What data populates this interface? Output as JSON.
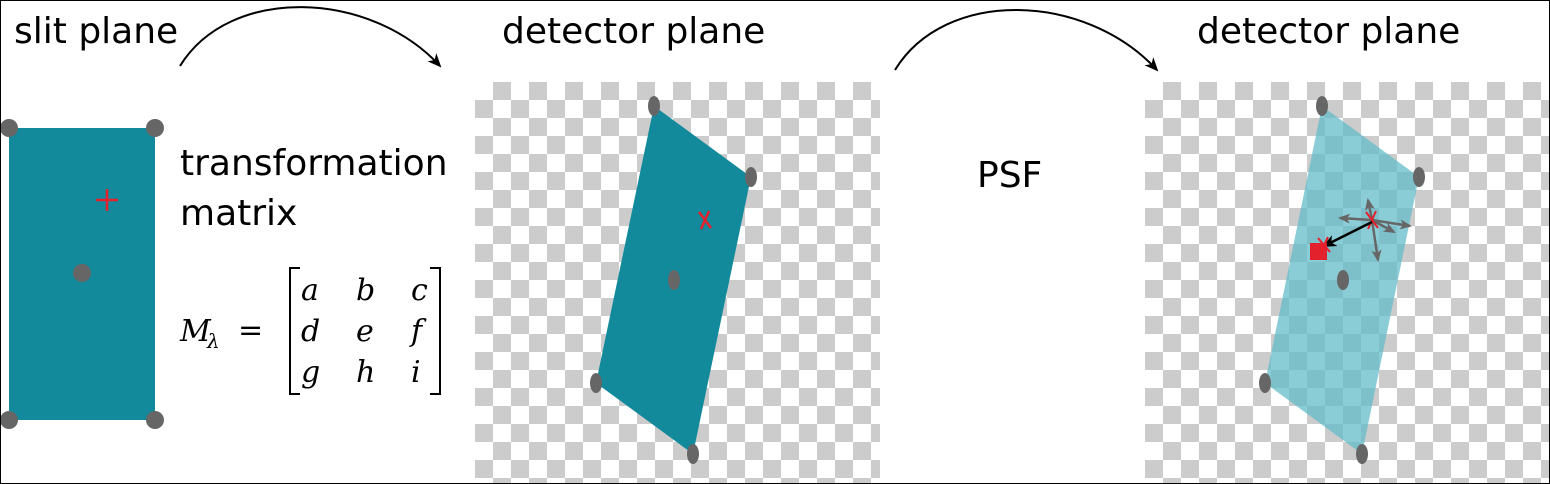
{
  "labels": {
    "slit_plane": "slit plane",
    "detector_plane_1": "detector plane",
    "detector_plane_2": "detector plane",
    "transformation_line1": "transformation",
    "transformation_line2": "matrix",
    "psf": "PSF"
  },
  "matrix": {
    "lhs_symbol": "M",
    "lhs_subscript": "λ",
    "equals": "=",
    "rows": [
      [
        "a",
        "b",
        "c"
      ],
      [
        "d",
        "e",
        "f"
      ],
      [
        "g",
        "h",
        "i"
      ]
    ]
  },
  "colors": {
    "slit_fill": "#138a9c",
    "projected_fill": "#138a9c",
    "psf_fill": "#64bcc9",
    "corner_dot": "#666666",
    "cross_mark": "#e3212d",
    "checker_light": "#ffffff",
    "checker_dark": "#cccccc",
    "arrow": "#000000"
  }
}
